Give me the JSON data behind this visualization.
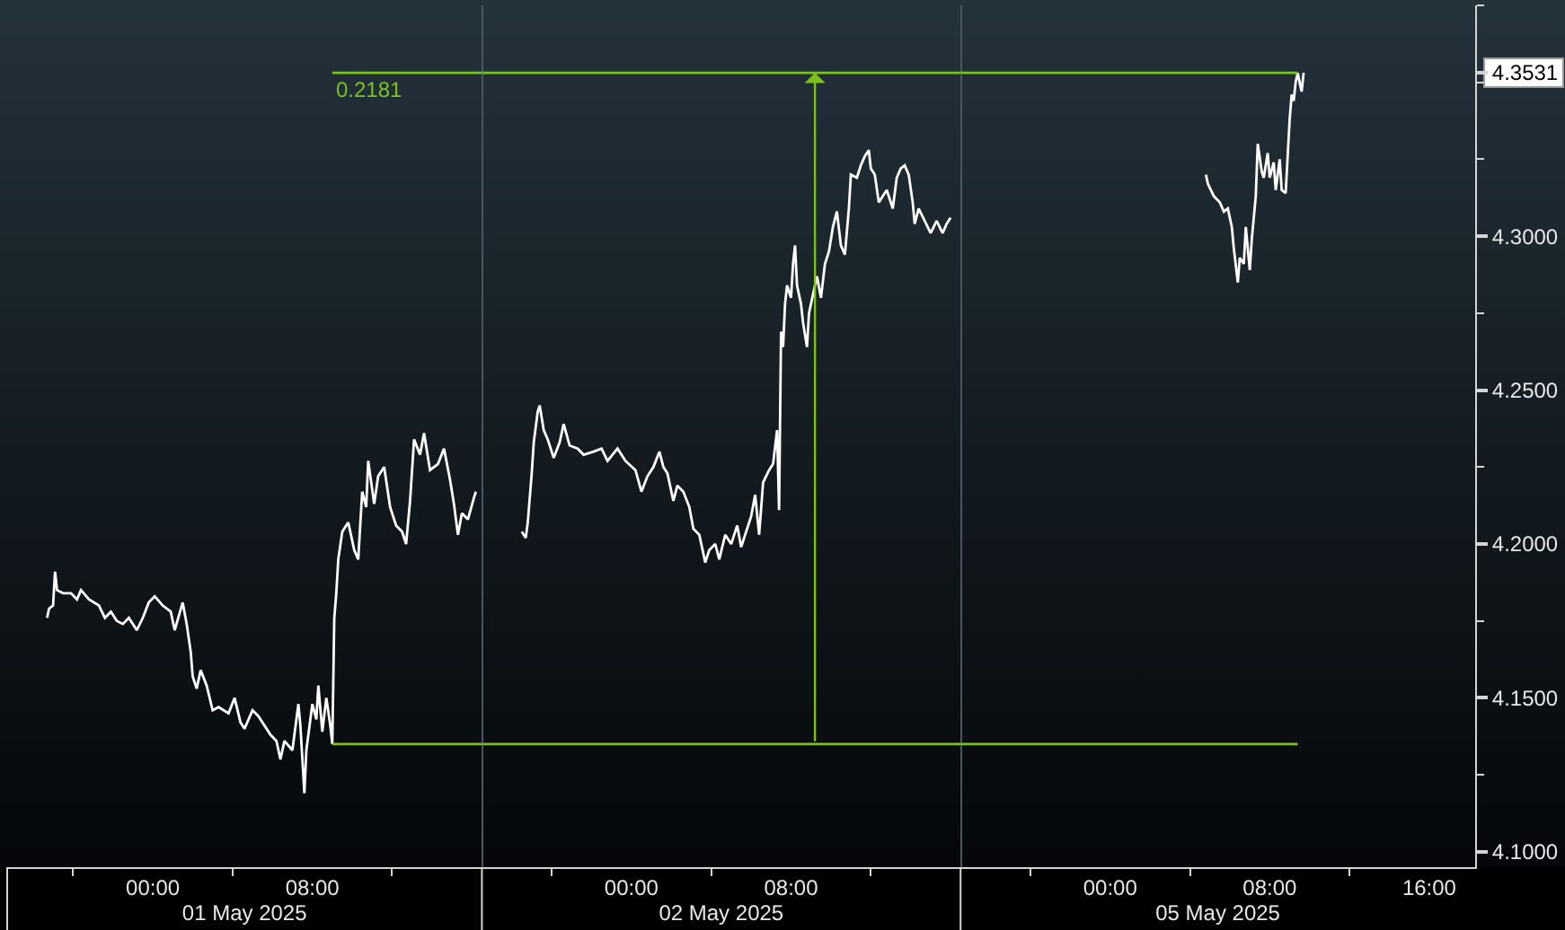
{
  "chart_data": [
    {
      "type": "line",
      "xlabel": "01 May 2025",
      "tick_labels": "x",
      "xlim": [
        "2025-04-30T16:42",
        "2025-05-01T16:30"
      ],
      "xticks": [
        {
          "value": "2025-04-30T20:00",
          "label": null
        },
        {
          "value": "2025-05-01T00:00",
          "label": "00:00"
        },
        {
          "value": "2025-05-01T04:00",
          "label": null
        },
        {
          "value": "2025-05-01T08:00",
          "label": "08:00"
        },
        {
          "value": "2025-05-01T12:00",
          "label": null
        }
      ],
      "ylim": [
        4.095,
        4.375
      ],
      "series": [
        {
          "color": "#ffffff",
          "x": [
            "2025-04-30T18:42",
            "2025-04-30T18:48",
            "2025-04-30T19:00",
            "2025-04-30T19:06",
            "2025-04-30T19:12",
            "2025-04-30T19:30",
            "2025-04-30T19:54",
            "2025-04-30T20:12",
            "2025-04-30T20:24",
            "2025-04-30T20:48",
            "2025-04-30T21:18",
            "2025-04-30T21:36",
            "2025-04-30T21:54",
            "2025-04-30T22:12",
            "2025-04-30T22:30",
            "2025-04-30T22:48",
            "2025-04-30T23:12",
            "2025-04-30T23:30",
            "2025-04-30T23:48",
            "2025-05-01T00:06",
            "2025-05-01T00:30",
            "2025-05-01T00:54",
            "2025-05-01T01:06",
            "2025-05-01T01:30",
            "2025-05-01T01:42",
            "2025-05-01T01:54",
            "2025-05-01T02:00",
            "2025-05-01T02:12",
            "2025-05-01T02:24",
            "2025-05-01T02:42",
            "2025-05-01T03:00",
            "2025-05-01T03:18",
            "2025-05-01T03:48",
            "2025-05-01T04:06",
            "2025-05-01T04:24",
            "2025-05-01T04:36",
            "2025-05-01T05:00",
            "2025-05-01T05:18",
            "2025-05-01T05:36",
            "2025-05-01T05:54",
            "2025-05-01T06:12",
            "2025-05-01T06:24",
            "2025-05-01T06:36",
            "2025-05-01T07:00",
            "2025-05-01T07:18",
            "2025-05-01T07:24",
            "2025-05-01T07:36",
            "2025-05-01T07:42",
            "2025-05-01T08:00",
            "2025-05-01T08:12",
            "2025-05-01T08:18",
            "2025-05-01T08:30",
            "2025-05-01T08:42",
            "2025-05-01T08:54",
            "2025-05-01T09:00",
            "2025-05-01T09:06",
            "2025-05-01T09:12",
            "2025-05-01T09:18",
            "2025-05-01T09:30",
            "2025-05-01T09:48",
            "2025-05-01T10:06",
            "2025-05-01T10:18",
            "2025-05-01T10:30",
            "2025-05-01T10:42",
            "2025-05-01T10:48",
            "2025-05-01T11:06",
            "2025-05-01T11:18",
            "2025-05-01T11:36",
            "2025-05-01T11:54",
            "2025-05-01T12:12",
            "2025-05-01T12:30",
            "2025-05-01T12:42",
            "2025-05-01T12:54",
            "2025-05-01T13:06",
            "2025-05-01T13:24",
            "2025-05-01T13:36",
            "2025-05-01T13:54",
            "2025-05-01T14:18",
            "2025-05-01T14:36",
            "2025-05-01T14:54",
            "2025-05-01T15:06",
            "2025-05-01T15:18",
            "2025-05-01T15:30",
            "2025-05-01T15:48",
            "2025-05-01T16:06",
            "2025-05-01T16:12"
          ],
          "values": [
            4.176,
            4.179,
            4.18,
            4.191,
            4.185,
            4.184,
            4.184,
            4.182,
            4.185,
            4.182,
            4.18,
            4.176,
            4.178,
            4.175,
            4.174,
            4.176,
            4.172,
            4.176,
            4.181,
            4.183,
            4.18,
            4.178,
            4.172,
            4.181,
            4.174,
            4.165,
            4.157,
            4.153,
            4.159,
            4.154,
            4.146,
            4.147,
            4.145,
            4.15,
            4.142,
            4.14,
            4.146,
            4.144,
            4.141,
            4.138,
            4.136,
            4.13,
            4.136,
            4.133,
            4.148,
            4.141,
            4.119,
            4.133,
            4.148,
            4.143,
            4.154,
            4.139,
            4.15,
            4.141,
            4.135,
            4.176,
            4.184,
            4.195,
            4.204,
            4.207,
            4.198,
            4.195,
            4.217,
            4.212,
            4.227,
            4.213,
            4.222,
            4.225,
            4.212,
            4.206,
            4.204,
            4.2,
            4.214,
            4.234,
            4.229,
            4.236,
            4.224,
            4.226,
            4.231,
            4.221,
            4.213,
            4.203,
            4.21,
            4.208,
            4.215,
            4.217
          ]
        },
        {
          "color": "#7dc11d",
          "x": [
            "2025-05-01T09:00",
            "2025-05-01T16:30"
          ],
          "values": [
            4.135,
            4.135
          ]
        },
        {
          "color": "#7dc11d",
          "x": [
            "2025-05-01T09:00",
            "2025-05-01T16:30"
          ],
          "values": [
            4.3531,
            4.3531
          ]
        }
      ],
      "annotations": [
        {
          "text": "0.2181",
          "x": "2025-05-01T09:00",
          "y": 4.3531
        }
      ]
    },
    {
      "type": "line",
      "xlabel": "02 May 2025",
      "tick_labels": "x",
      "xlim": [
        "2025-05-01T16:30",
        "2025-05-02T16:30"
      ],
      "xticks": [
        {
          "value": "2025-05-01T20:00",
          "label": null
        },
        {
          "value": "2025-05-02T00:00",
          "label": "00:00"
        },
        {
          "value": "2025-05-02T04:00",
          "label": null
        },
        {
          "value": "2025-05-02T08:00",
          "label": "08:00"
        },
        {
          "value": "2025-05-02T12:00",
          "label": null
        }
      ],
      "ylim": [
        4.095,
        4.375
      ],
      "series": [
        {
          "color": "#ffffff",
          "x": [
            "2025-05-01T18:30",
            "2025-05-01T18:42",
            "2025-05-01T18:48",
            "2025-05-01T18:54",
            "2025-05-01T19:00",
            "2025-05-01T19:06",
            "2025-05-01T19:18",
            "2025-05-01T19:24",
            "2025-05-01T19:36",
            "2025-05-01T19:48",
            "2025-05-01T20:06",
            "2025-05-01T20:24",
            "2025-05-01T20:36",
            "2025-05-01T20:54",
            "2025-05-01T21:18",
            "2025-05-01T21:36",
            "2025-05-01T22:06",
            "2025-05-01T22:30",
            "2025-05-01T22:48",
            "2025-05-01T23:18",
            "2025-05-01T23:42",
            "2025-05-02T00:12",
            "2025-05-02T00:30",
            "2025-05-02T00:48",
            "2025-05-02T01:06",
            "2025-05-02T01:24",
            "2025-05-02T01:36",
            "2025-05-02T01:48",
            "2025-05-02T02:06",
            "2025-05-02T02:18",
            "2025-05-02T02:36",
            "2025-05-02T02:54",
            "2025-05-02T03:06",
            "2025-05-02T03:24",
            "2025-05-02T03:42",
            "2025-05-02T03:54",
            "2025-05-02T04:12",
            "2025-05-02T04:24",
            "2025-05-02T04:42",
            "2025-05-02T05:00",
            "2025-05-02T05:18",
            "2025-05-02T05:30",
            "2025-05-02T05:48",
            "2025-05-02T06:00",
            "2025-05-02T06:12",
            "2025-05-02T06:24",
            "2025-05-02T06:36",
            "2025-05-02T06:54",
            "2025-05-02T07:06",
            "2025-05-02T07:18",
            "2025-05-02T07:24",
            "2025-05-02T07:30",
            "2025-05-02T07:36",
            "2025-05-02T07:42",
            "2025-05-02T07:48",
            "2025-05-02T08:00",
            "2025-05-02T08:06",
            "2025-05-02T08:12",
            "2025-05-02T08:18",
            "2025-05-02T08:30",
            "2025-05-02T08:36",
            "2025-05-02T08:48",
            "2025-05-02T08:54",
            "2025-05-02T09:06",
            "2025-05-02T09:18",
            "2025-05-02T09:30",
            "2025-05-02T09:42",
            "2025-05-02T09:54",
            "2025-05-02T10:06",
            "2025-05-02T10:18",
            "2025-05-02T10:30",
            "2025-05-02T10:42",
            "2025-05-02T10:54",
            "2025-05-02T11:00",
            "2025-05-02T11:18",
            "2025-05-02T11:30",
            "2025-05-02T11:42",
            "2025-05-02T11:54",
            "2025-05-02T12:00",
            "2025-05-02T12:12",
            "2025-05-02T12:24",
            "2025-05-02T12:36",
            "2025-05-02T12:48",
            "2025-05-02T13:06",
            "2025-05-02T13:18",
            "2025-05-02T13:30",
            "2025-05-02T13:42",
            "2025-05-02T13:54",
            "2025-05-02T14:06",
            "2025-05-02T14:12",
            "2025-05-02T14:24",
            "2025-05-02T14:42",
            "2025-05-02T15:00",
            "2025-05-02T15:18",
            "2025-05-02T15:36",
            "2025-05-02T15:48",
            "2025-05-02T16:00"
          ],
          "values": [
            4.204,
            4.202,
            4.207,
            4.215,
            4.223,
            4.233,
            4.243,
            4.245,
            4.237,
            4.234,
            4.228,
            4.233,
            4.239,
            4.232,
            4.231,
            4.229,
            4.23,
            4.231,
            4.227,
            4.231,
            4.227,
            4.224,
            4.217,
            4.222,
            4.225,
            4.23,
            4.225,
            4.223,
            4.214,
            4.219,
            4.217,
            4.212,
            4.205,
            4.203,
            4.194,
            4.198,
            4.2,
            4.195,
            4.203,
            4.2,
            4.206,
            4.199,
            4.205,
            4.209,
            4.216,
            4.203,
            4.22,
            4.224,
            4.226,
            4.237,
            4.211,
            4.269,
            4.264,
            4.278,
            4.284,
            4.28,
            4.291,
            4.297,
            4.284,
            4.278,
            4.272,
            4.264,
            4.275,
            4.281,
            4.287,
            4.28,
            4.291,
            4.295,
            4.303,
            4.308,
            4.297,
            4.294,
            4.309,
            4.32,
            4.319,
            4.323,
            4.326,
            4.328,
            4.322,
            4.32,
            4.311,
            4.313,
            4.315,
            4.309,
            4.319,
            4.322,
            4.323,
            4.32,
            4.311,
            4.304,
            4.309,
            4.305,
            4.301,
            4.305,
            4.301,
            4.304,
            4.306
          ]
        },
        {
          "color": "#7dc11d",
          "x": [
            "2025-05-01T16:30",
            "2025-05-02T16:30"
          ],
          "values": [
            4.135,
            4.135
          ]
        },
        {
          "color": "#7dc11d",
          "x": [
            "2025-05-01T16:30",
            "2025-05-02T16:30"
          ],
          "values": [
            4.3531,
            4.3531
          ]
        }
      ]
    },
    {
      "type": "line",
      "xlabel": "05 May 2025",
      "xlim": [
        "2025-05-04T16:30",
        "2025-05-05T18:18"
      ],
      "xticks": [
        {
          "value": "2025-05-04T20:00",
          "label": null
        },
        {
          "value": "2025-05-05T00:00",
          "label": "00:00"
        },
        {
          "value": "2025-05-05T04:00",
          "label": null
        },
        {
          "value": "2025-05-05T08:00",
          "label": "08:00"
        },
        {
          "value": "2025-05-05T12:00",
          "label": null
        },
        {
          "value": "2025-05-05T16:00",
          "label": "16:00"
        }
      ],
      "ylim": [
        4.095,
        4.375
      ],
      "yticks": [
        {
          "value": 4.1,
          "label": "4.1000"
        },
        {
          "value": 4.125,
          "label": null
        },
        {
          "value": 4.15,
          "label": "4.1500"
        },
        {
          "value": 4.175,
          "label": null
        },
        {
          "value": 4.2,
          "label": "4.2000"
        },
        {
          "value": 4.225,
          "label": null
        },
        {
          "value": 4.25,
          "label": "4.2500"
        },
        {
          "value": 4.275,
          "label": null
        },
        {
          "value": 4.3,
          "label": "4.3000"
        },
        {
          "value": 4.325,
          "label": null
        },
        {
          "value": 4.35,
          "label": null
        },
        4.3531,
        {
          "value": 4.375,
          "label": null
        }
      ],
      "series": [
        {
          "color": "#ffffff",
          "x": [
            "2025-05-05T04:48",
            "2025-05-05T04:54",
            "2025-05-05T05:12",
            "2025-05-05T05:30",
            "2025-05-05T05:42",
            "2025-05-05T05:54",
            "2025-05-05T06:06",
            "2025-05-05T06:12",
            "2025-05-05T06:24",
            "2025-05-05T06:30",
            "2025-05-05T06:42",
            "2025-05-05T06:48",
            "2025-05-05T07:00",
            "2025-05-05T07:06",
            "2025-05-05T07:18",
            "2025-05-05T07:24",
            "2025-05-05T07:36",
            "2025-05-05T07:42",
            "2025-05-05T07:54",
            "2025-05-05T08:00",
            "2025-05-05T08:12",
            "2025-05-05T08:18",
            "2025-05-05T08:30",
            "2025-05-05T08:36",
            "2025-05-05T08:48",
            "2025-05-05T08:54",
            "2025-05-05T09:00",
            "2025-05-05T09:06",
            "2025-05-05T09:12",
            "2025-05-05T09:18",
            "2025-05-05T09:24",
            "2025-05-05T09:36",
            "2025-05-05T09:42"
          ],
          "values": [
            4.32,
            4.317,
            4.313,
            4.311,
            4.308,
            4.309,
            4.303,
            4.296,
            4.285,
            4.293,
            4.291,
            4.303,
            4.289,
            4.299,
            4.313,
            4.33,
            4.321,
            4.319,
            4.327,
            4.319,
            4.324,
            4.315,
            4.325,
            4.315,
            4.314,
            4.326,
            4.338,
            4.346,
            4.344,
            4.35,
            4.353,
            4.347,
            4.3531
          ]
        },
        {
          "color": "#7dc11d",
          "x": [
            "2025-05-04T16:30",
            "2025-05-05T09:24"
          ],
          "values": [
            4.135,
            4.135
          ]
        },
        {
          "color": "#7dc11d",
          "x": [
            "2025-05-04T16:30",
            "2025-05-05T09:24"
          ],
          "values": [
            4.3531,
            4.3531
          ]
        }
      ]
    }
  ]
}
